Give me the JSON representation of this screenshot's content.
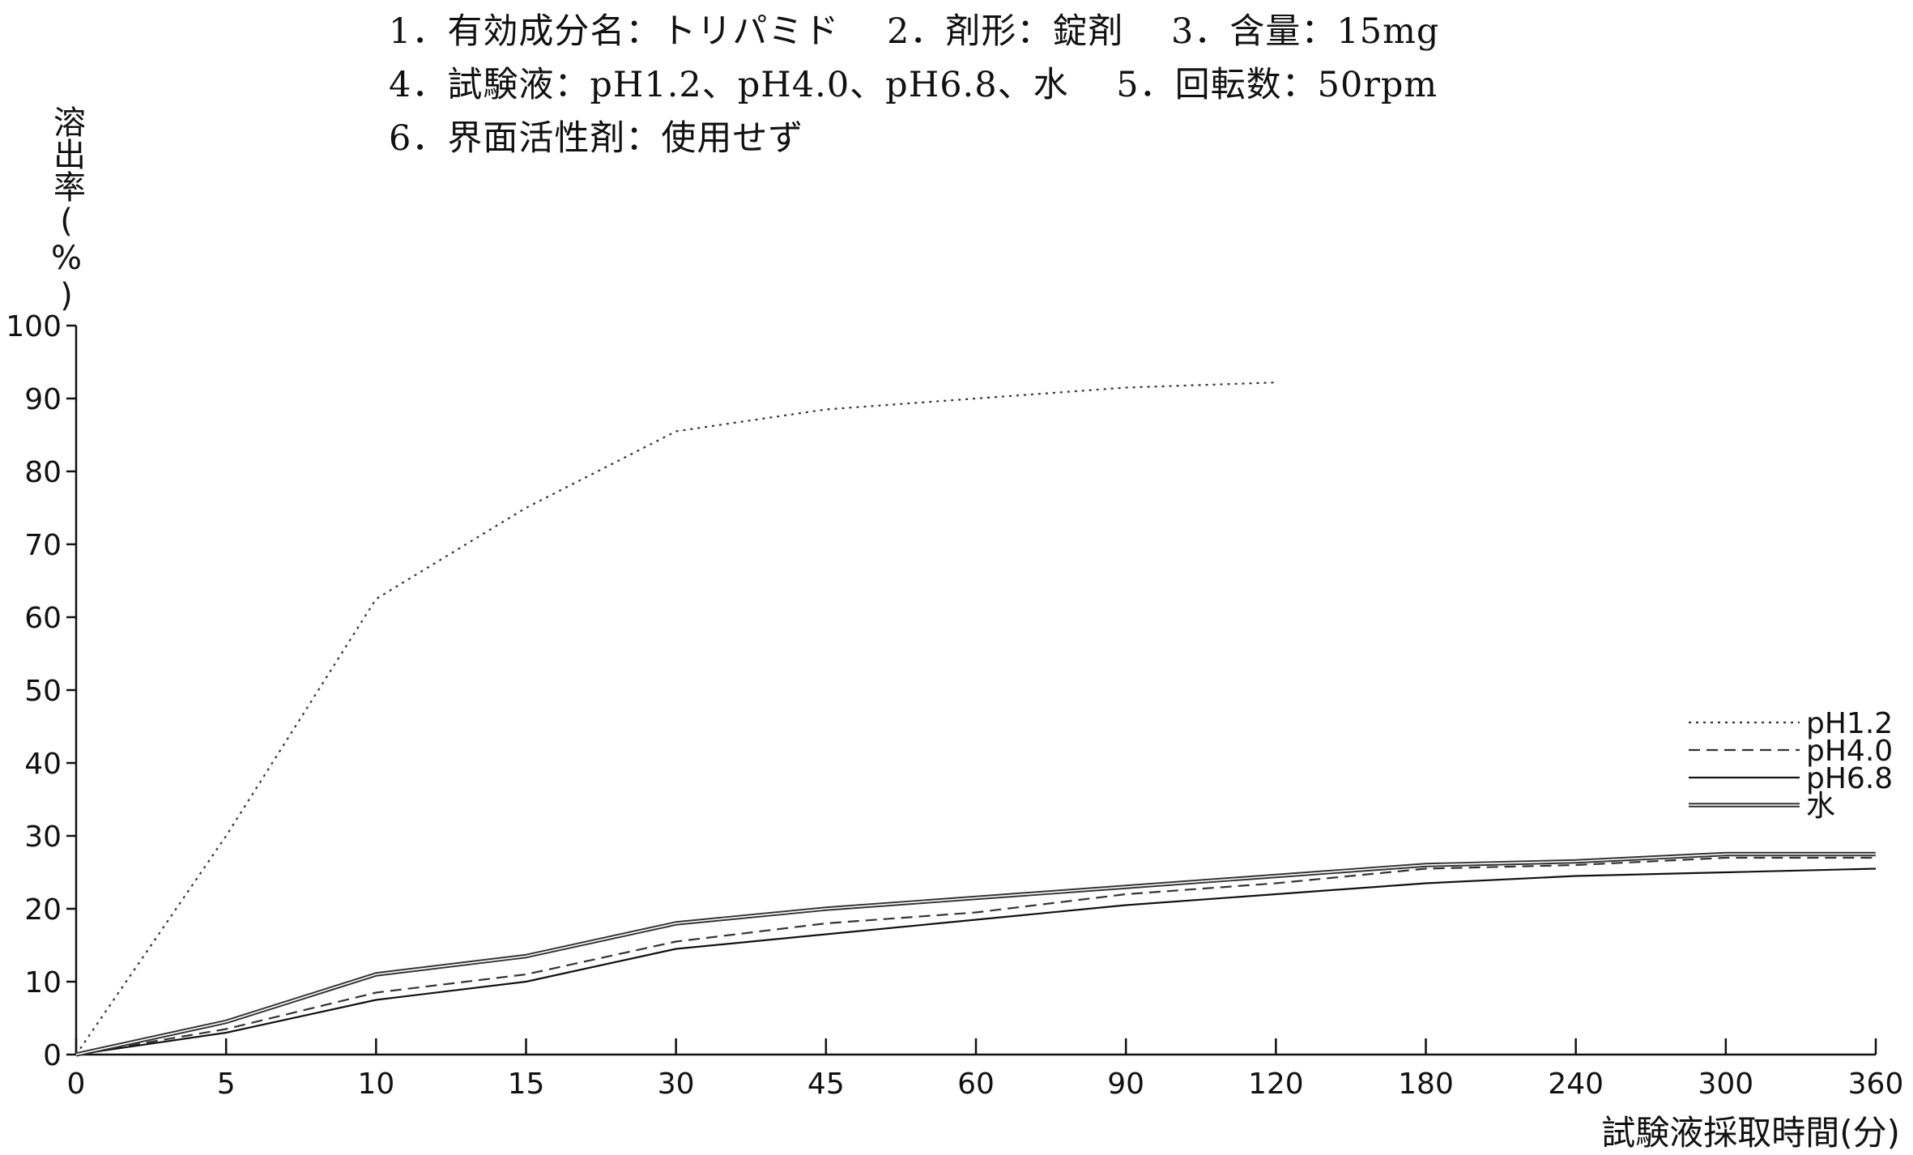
{
  "header": {
    "line1": "1．有効成分名：トリパミド　 2．剤形：錠剤　 3．含量：15mg",
    "line2": "4．試験液：pH1.2、pH4.0、pH6.8、水　 5．回転数：50rpm",
    "line3": "6．界面活性剤：使用せず"
  },
  "chart_data": {
    "type": "line",
    "title": "",
    "xlabel": "試験液採取時間(分)",
    "ylabel": "溶出率(%)",
    "categories": [
      "0",
      "5",
      "10",
      "15",
      "30",
      "45",
      "60",
      "90",
      "120",
      "180",
      "240",
      "300",
      "360"
    ],
    "ylim": [
      0,
      100
    ],
    "yticks": [
      0,
      10,
      20,
      30,
      40,
      50,
      60,
      70,
      80,
      90,
      100
    ],
    "grid": false,
    "legend_position": "right",
    "series": [
      {
        "name": "pH1.2",
        "style": "dotted",
        "color": "#333333",
        "values": [
          0,
          30,
          62.5,
          75,
          85.5,
          88.5,
          90,
          91.5,
          92.2,
          null,
          null,
          null,
          null
        ]
      },
      {
        "name": "pH4.0",
        "style": "dashed",
        "color": "#333333",
        "values": [
          0,
          3.5,
          8.5,
          11,
          15.5,
          18,
          19.5,
          22,
          23.5,
          25.5,
          26,
          27,
          27
        ]
      },
      {
        "name": "pH6.8",
        "style": "solid",
        "color": "#111111",
        "values": [
          0,
          3,
          7.5,
          10,
          14.5,
          16.5,
          18.5,
          20.5,
          22,
          23.5,
          24.5,
          25,
          25.5
        ]
      },
      {
        "name": "水",
        "style": "double",
        "color": "#333333",
        "values": [
          0,
          4.5,
          11,
          13.5,
          18,
          20,
          21.5,
          23,
          24.5,
          26,
          26.5,
          27.5,
          27.5
        ]
      }
    ]
  }
}
